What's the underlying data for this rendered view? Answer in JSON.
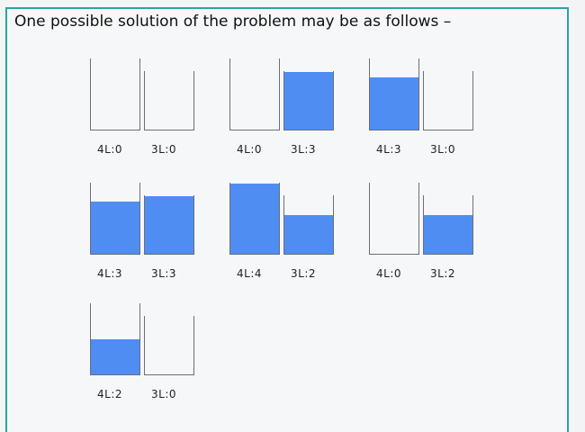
{
  "title": "One possible solution of the problem may be as follows –",
  "colors": {
    "water": "#4f8df3",
    "frame": "#2aa6a0"
  },
  "steps": [
    {
      "big_label": "4L:0",
      "small_label": "3L:0",
      "big_level": 0,
      "small_level": 0
    },
    {
      "big_label": "4L:0",
      "small_label": "3L:3",
      "big_level": 0,
      "small_level": 3
    },
    {
      "big_label": "4L:3",
      "small_label": "3L:0",
      "big_level": 3,
      "small_level": 0
    },
    {
      "big_label": "4L:3",
      "small_label": "3L:3",
      "big_level": 3,
      "small_level": 3
    },
    {
      "big_label": "4L:4",
      "small_label": "3L:2",
      "big_level": 4,
      "small_level": 2
    },
    {
      "big_label": "4L:0",
      "small_label": "3L:2",
      "big_level": 0,
      "small_level": 2
    },
    {
      "big_label": "4L:2",
      "small_label": "3L:0",
      "big_level": 2,
      "small_level": 0
    }
  ]
}
